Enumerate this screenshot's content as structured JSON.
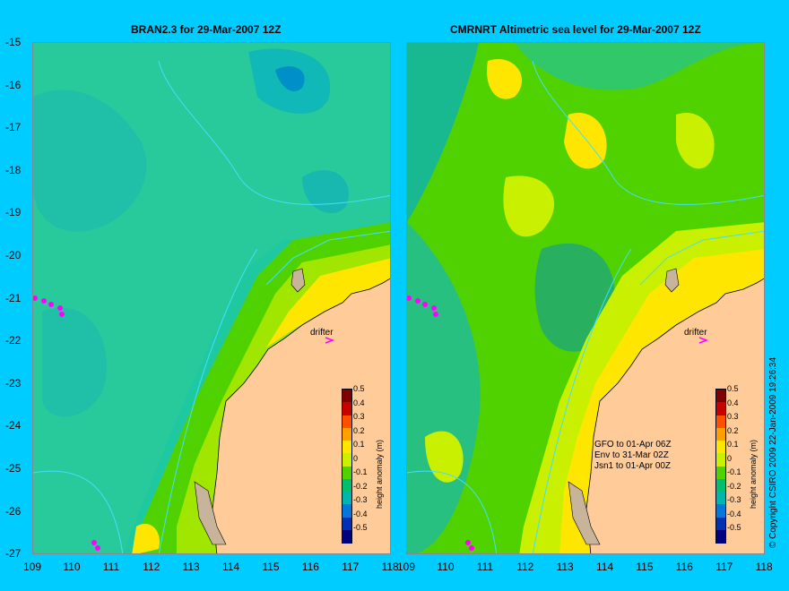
{
  "left_panel": {
    "title": "BRAN2.3 for 29-Mar-2007 12Z"
  },
  "right_panel": {
    "title": "CMRNRT Altimetric sea level  for 29-Mar-2007 12Z",
    "info_lines": [
      "GFO to 01-Apr 06Z",
      "Env to 31-Mar 02Z",
      "Jsn1 to 01-Apr 00Z"
    ]
  },
  "y_ticks": [
    "-15",
    "-16",
    "-17",
    "-18",
    "-19",
    "-20",
    "-21",
    "-22",
    "-23",
    "-24",
    "-25",
    "-26",
    "-27"
  ],
  "x_ticks": [
    "109",
    "110",
    "111",
    "112",
    "113",
    "114",
    "115",
    "116",
    "117",
    "118"
  ],
  "drifter_label": "drifter",
  "colorbar": {
    "title": "height anomaly (m)",
    "labels": [
      "0.5",
      "0.4",
      "0.3",
      "0.2",
      "0.1",
      "0",
      "-0.1",
      "-0.2",
      "-0.3",
      "-0.4",
      "-0.5"
    ],
    "colors": [
      "#7f0000",
      "#c80000",
      "#ff5000",
      "#ffa000",
      "#ffe600",
      "#c8f000",
      "#50d200",
      "#00c070",
      "#00b4b4",
      "#0078dc",
      "#0030b4",
      "#000080"
    ]
  },
  "copyright": "© Copyright CSIRO 2009   22-Jan-2009 19:26:34",
  "map_colors": {
    "land": "#ffcc99",
    "island": "#c8b49a",
    "contour_line": "#40e0ff",
    "marker": "#ff00ff"
  }
}
